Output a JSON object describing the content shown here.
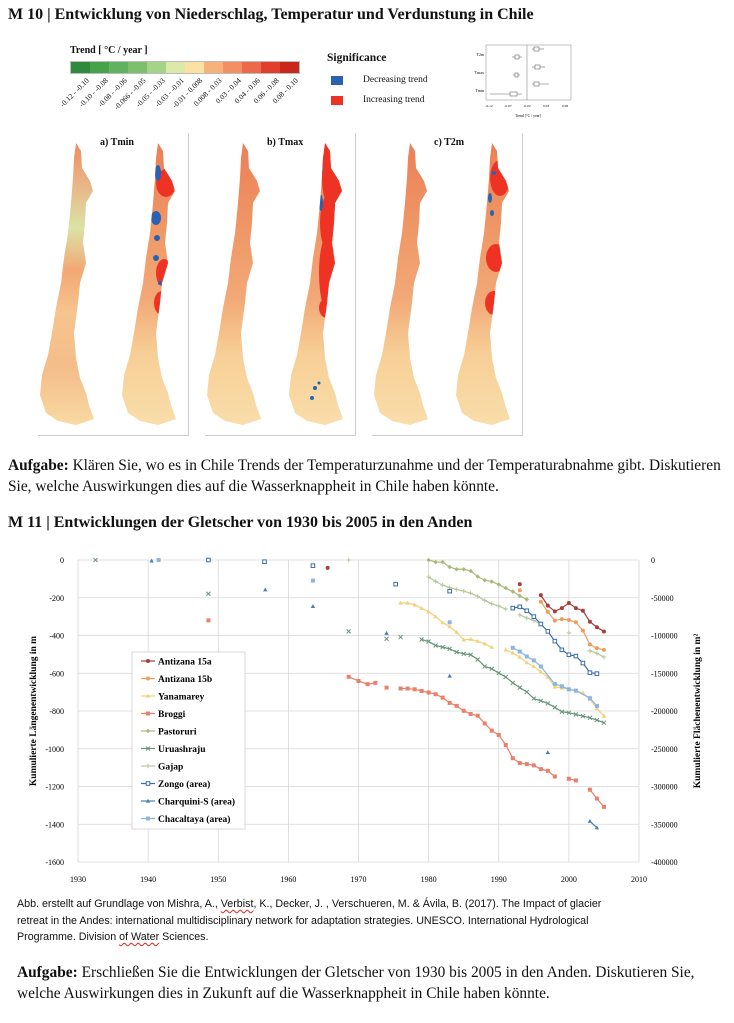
{
  "m10": {
    "title": "M 10  |  Entwicklung von Niederschlag, Temperatur und Verdunstung in Chile",
    "trend_legend": {
      "title": "Trend [ °C / year ]",
      "classes": [
        {
          "label": "-0.12 - -0.10",
          "color": "#2f8a3c"
        },
        {
          "label": "-0.10 - -0.08",
          "color": "#48a24c"
        },
        {
          "label": "-0.08 - -0.06",
          "color": "#5fb25f"
        },
        {
          "label": "-0.066 - -0.05",
          "color": "#7cbf6f"
        },
        {
          "label": "-0.05 - -0.03",
          "color": "#a6d38a"
        },
        {
          "label": "-0.03 - -0.01",
          "color": "#dbe9aa"
        },
        {
          "label": "-0.01 - 0.008",
          "color": "#fbe2a4"
        },
        {
          "label": "0.008 - 0.03",
          "color": "#f7b27c"
        },
        {
          "label": "0.03 - 0.04",
          "color": "#f28f64"
        },
        {
          "label": "0.04 - 0.06",
          "color": "#eb6a4c"
        },
        {
          "label": "0.06 - 0.08",
          "color": "#df3f2c"
        },
        {
          "label": "0.08 - 0.10",
          "color": "#c9261d"
        }
      ]
    },
    "significance": {
      "title": "Significance",
      "items": [
        {
          "label": "Decreasing trend",
          "color": "#2a62b0"
        },
        {
          "label": "Increasing trend",
          "color": "#ee3324"
        }
      ]
    },
    "boxplot": {
      "rows": [
        "T2m",
        "Tmax",
        "Tmin"
      ],
      "ticks": [
        "-0.12",
        "-0.07",
        "-0.02",
        "0.03",
        "0.08"
      ],
      "xlabel": "Trend [°C / year]"
    },
    "panels": [
      {
        "title": "a) Tmin"
      },
      {
        "title": "b) Tmax"
      },
      {
        "title": "c) T2m"
      }
    ],
    "task": {
      "label": "Aufgabe:",
      "text": " Klären Sie, wo es in Chile Trends der Temperaturzunahme und der Temperaturabnahme gibt. Diskutieren Sie, welche Auswirkungen dies auf die Wasserknappheit in Chile haben könnte."
    }
  },
  "m11": {
    "title": "M 11  |  Entwicklungen der Gletscher von 1930 bis 2005 in den Anden",
    "caption": {
      "l1a": "Abb. erstellt auf Grundlage von Mishra, A., ",
      "l1b": "Verbist",
      "l1c": ", K., Decker, J. , Verschueren, M. & Ávila, B.  (2017). The Impact of glacier",
      "l2": "retreat in the Andes: international multidisciplinary network for adaptation strategies. UNESCO. International Hydrological",
      "l3a": "Programme. Division ",
      "l3b": "of Water",
      "l3c": " Sciences."
    },
    "task": {
      "label": "Aufgabe:",
      "text": " Erschließen Sie die Entwicklungen der Gletscher von 1930 bis 2005 in den Anden. Diskutieren Sie, welche Auswirkungen dies in Zukunft auf die Wasserknappheit in Chile haben könnte."
    }
  },
  "chart_data": {
    "type": "line",
    "title": "",
    "xlabel": "",
    "ylabel": "Kumulierte Längenentwicklung in m",
    "y2label": "Kumulierte Flächenentwicklung in m²",
    "xlim": [
      1930,
      2010
    ],
    "ylim": [
      -1600,
      0
    ],
    "y2lim": [
      -400000,
      0
    ],
    "grid": true,
    "legend_position": "center-left",
    "xticks": [
      "1930",
      "1940",
      "1950",
      "1960",
      "1970",
      "1980",
      "1990",
      "2000",
      "2010"
    ],
    "yticks": [
      "0",
      "-200",
      "-400",
      "-600",
      "-800",
      "-1000",
      "-1200",
      "-1400",
      "-1600"
    ],
    "y2ticks": [
      "0",
      "-50000",
      "-100000",
      "-150000",
      "-200000",
      "-250000",
      "-300000",
      "-350000",
      "-400000"
    ],
    "series": [
      {
        "name": "Antizana 15a",
        "color": "#a53f3a",
        "marker": "circle",
        "segments": [
          [
            [
              1965.6,
              -42
            ]
          ],
          [
            [
              1993,
              -128
            ]
          ],
          [
            [
              1996,
              -186
            ],
            [
              1997,
              -242
            ],
            [
              1998,
              -272
            ],
            [
              1999,
              -255
            ],
            [
              2000,
              -228
            ],
            [
              2001,
              -255
            ],
            [
              2002,
              -269
            ],
            [
              2003,
              -327
            ],
            [
              2004,
              -356
            ],
            [
              2005,
              -379
            ]
          ]
        ]
      },
      {
        "name": "Antizana 15b",
        "color": "#f29b5e",
        "marker": "circle",
        "segments": [
          [
            [
              1993,
              -160
            ]
          ],
          [
            [
              1996,
              -221
            ],
            [
              1997,
              -274
            ],
            [
              1998,
              -321
            ],
            [
              1999,
              -313
            ],
            [
              2000,
              -318
            ],
            [
              2001,
              -330
            ],
            [
              2002,
              -374
            ],
            [
              2003,
              -448
            ],
            [
              2004,
              -467
            ],
            [
              2005,
              -476
            ]
          ]
        ]
      },
      {
        "name": "Yanamarey",
        "color": "#f4cf78",
        "marker": "triangle",
        "segments": [
          [
            [
              1976,
              -228
            ],
            [
              1977,
              -228
            ],
            [
              1978,
              -237
            ],
            [
              1979,
              -256
            ],
            [
              1980,
              -274
            ],
            [
              1981,
              -300
            ],
            [
              1982,
              -332
            ],
            [
              1983,
              -353
            ],
            [
              1984,
              -383
            ],
            [
              1985,
              -423
            ],
            [
              1986,
              -420
            ],
            [
              1987,
              -430
            ],
            [
              1988,
              -444
            ],
            [
              1989,
              -462
            ]
          ],
          [
            [
              1991,
              -476
            ],
            [
              1992,
              -493
            ],
            [
              1993,
              -514
            ],
            [
              1994,
              -544
            ],
            [
              1995,
              -564
            ],
            [
              1996,
              -592
            ],
            [
              1997,
              -620
            ],
            [
              1998,
              -673
            ],
            [
              1999,
              -678
            ],
            [
              2000,
              -685
            ],
            [
              2001,
              -694
            ],
            [
              2002,
              -704
            ],
            [
              2003,
              -738
            ],
            [
              2004,
              -787
            ],
            [
              2005,
              -827
            ]
          ]
        ]
      },
      {
        "name": "Broggi",
        "color": "#e8806a",
        "marker": "square",
        "segments": [
          [
            [
              1948.6,
              -320
            ]
          ],
          [
            [
              1968.6,
              -619
            ],
            [
              1970,
              -641
            ],
            [
              1971.3,
              -658
            ],
            [
              1972.4,
              -651
            ]
          ],
          [
            [
              1974,
              -676
            ]
          ],
          [
            [
              1976,
              -681
            ],
            [
              1977,
              -681
            ],
            [
              1978,
              -685
            ],
            [
              1979,
              -694
            ],
            [
              1980,
              -702
            ],
            [
              1981,
              -711
            ],
            [
              1982,
              -729
            ],
            [
              1983,
              -757
            ],
            [
              1984,
              -773
            ],
            [
              1985,
              -799
            ],
            [
              1986,
              -816
            ],
            [
              1987,
              -825
            ],
            [
              1988,
              -866
            ],
            [
              1989,
              -904
            ],
            [
              1990,
              -927
            ],
            [
              1991,
              -980
            ],
            [
              1992,
              -1050
            ],
            [
              1993,
              -1076
            ],
            [
              1994,
              -1081
            ],
            [
              1995,
              -1088
            ],
            [
              1996,
              -1108
            ],
            [
              1997,
              -1117
            ],
            [
              1998,
              -1147
            ]
          ],
          [
            [
              2000,
              -1159
            ],
            [
              2001,
              -1168
            ]
          ],
          [
            [
              2003,
              -1217
            ],
            [
              2004,
              -1264
            ],
            [
              2005,
              -1308
            ]
          ]
        ]
      },
      {
        "name": "Pastoruri",
        "color": "#a9b977",
        "marker": "diamond",
        "segments": [
          [
            [
              1980,
              0
            ],
            [
              1981,
              -11
            ],
            [
              1982,
              -11
            ],
            [
              1983,
              -37
            ],
            [
              1984,
              -49
            ],
            [
              1985,
              -49
            ],
            [
              1986,
              -58
            ],
            [
              1987,
              -88
            ],
            [
              1988,
              -107
            ],
            [
              1989,
              -114
            ],
            [
              1990,
              -130
            ],
            [
              1991,
              -149
            ],
            [
              1992,
              -167
            ],
            [
              1993,
              -190
            ],
            [
              1994,
              -209
            ]
          ]
        ]
      },
      {
        "name": "Uruashraju",
        "color": "#66977a",
        "marker": "x",
        "segments": [
          [
            [
              1932.5,
              0
            ]
          ],
          [
            [
              1948.6,
              -179
            ]
          ],
          [
            [
              1968.6,
              -378
            ]
          ],
          [
            [
              1974,
              -418
            ]
          ],
          [
            [
              1976,
              -409
            ]
          ],
          [
            [
              1979,
              -421
            ],
            [
              1980,
              -432
            ],
            [
              1981,
              -453
            ],
            [
              1982,
              -462
            ],
            [
              1983,
              -471
            ],
            [
              1984,
              -488
            ],
            [
              1985,
              -497
            ],
            [
              1986,
              -502
            ],
            [
              1987,
              -527
            ],
            [
              1988,
              -564
            ],
            [
              1989,
              -576
            ],
            [
              1990,
              -599
            ],
            [
              1991,
              -620
            ],
            [
              1992,
              -651
            ],
            [
              1993,
              -676
            ],
            [
              1994,
              -699
            ],
            [
              1995,
              -734
            ],
            [
              1996,
              -746
            ],
            [
              1997,
              -760
            ],
            [
              1998,
              -781
            ],
            [
              1999,
              -804
            ],
            [
              2000,
              -809
            ],
            [
              2001,
              -818
            ],
            [
              2002,
              -827
            ],
            [
              2003,
              -836
            ],
            [
              2004,
              -848
            ],
            [
              2005,
              -862
            ]
          ]
        ]
      },
      {
        "name": "Gajap",
        "color": "#b9c79a",
        "marker": "plus",
        "segments": [
          [
            [
              1968.6,
              0
            ]
          ],
          [
            [
              1980,
              -90
            ],
            [
              1981,
              -114
            ],
            [
              1982,
              -133
            ],
            [
              1983,
              -146
            ],
            [
              1984,
              -156
            ],
            [
              1985,
              -165
            ],
            [
              1986,
              -176
            ],
            [
              1987,
              -193
            ],
            [
              1988,
              -214
            ],
            [
              1989,
              -232
            ],
            [
              1990,
              -244
            ],
            [
              1991,
              -260
            ]
          ],
          [
            [
              1993,
              -291
            ],
            [
              1994,
              -307
            ],
            [
              1995,
              -321
            ],
            [
              1996,
              -339
            ]
          ],
          [
            [
              2000,
              -386
            ]
          ],
          [
            [
              2003,
              -481
            ],
            [
              2004,
              -495
            ],
            [
              2005,
              -514
            ]
          ]
        ]
      },
      {
        "name": "Zongo (area)",
        "color": "#3a6ea6",
        "marker": "open-square",
        "segments": [
          [
            [
              1948.6,
              0
            ]
          ],
          [
            [
              1956.6,
              -9
            ]
          ],
          [
            [
              1963.5,
              -30
            ]
          ],
          [
            [
              1975.3,
              -128
            ]
          ],
          [
            [
              1983,
              -165
            ]
          ],
          [
            [
              1992,
              -255
            ],
            [
              1993,
              -248
            ],
            [
              1994,
              -269
            ],
            [
              1995,
              -300
            ],
            [
              1996,
              -339
            ],
            [
              1997,
              -378
            ],
            [
              1998,
              -430
            ],
            [
              1999,
              -476
            ],
            [
              2000,
              -502
            ],
            [
              2001,
              -509
            ],
            [
              2002,
              -546
            ],
            [
              2003,
              -597
            ],
            [
              2004,
              -602
            ]
          ]
        ]
      },
      {
        "name": "Charquini-S (area)",
        "color": "#4a80b2",
        "marker": "triangle",
        "segments": [
          [
            [
              1940.5,
              -5
            ]
          ],
          [
            [
              1956.7,
              -158
            ]
          ],
          [
            [
              1963.5,
              -246
            ]
          ],
          [
            [
              1974,
              -388
            ]
          ],
          [
            [
              1983,
              -615
            ]
          ],
          [
            [
              1997,
              -1020
            ]
          ],
          [
            [
              2003,
              -1384
            ],
            [
              2004,
              -1419
            ]
          ]
        ]
      },
      {
        "name": "Chacaltaya (area)",
        "color": "#8bb6e0",
        "marker": "square",
        "segments": [
          [
            [
              1941.5,
              0
            ]
          ],
          [
            [
              1963.5,
              -109
            ]
          ],
          [
            [
              1983,
              -330
            ]
          ],
          [
            [
              1992,
              -465
            ],
            [
              1993,
              -485
            ],
            [
              1994,
              -511
            ],
            [
              1995,
              -532
            ],
            [
              1996,
              -564
            ],
            [
              1998,
              -657
            ],
            [
              1999,
              -669
            ],
            [
              2000,
              -685
            ],
            [
              2001,
              -692
            ],
            [
              2003,
              -732
            ],
            [
              2004,
              -773
            ]
          ]
        ]
      }
    ]
  }
}
